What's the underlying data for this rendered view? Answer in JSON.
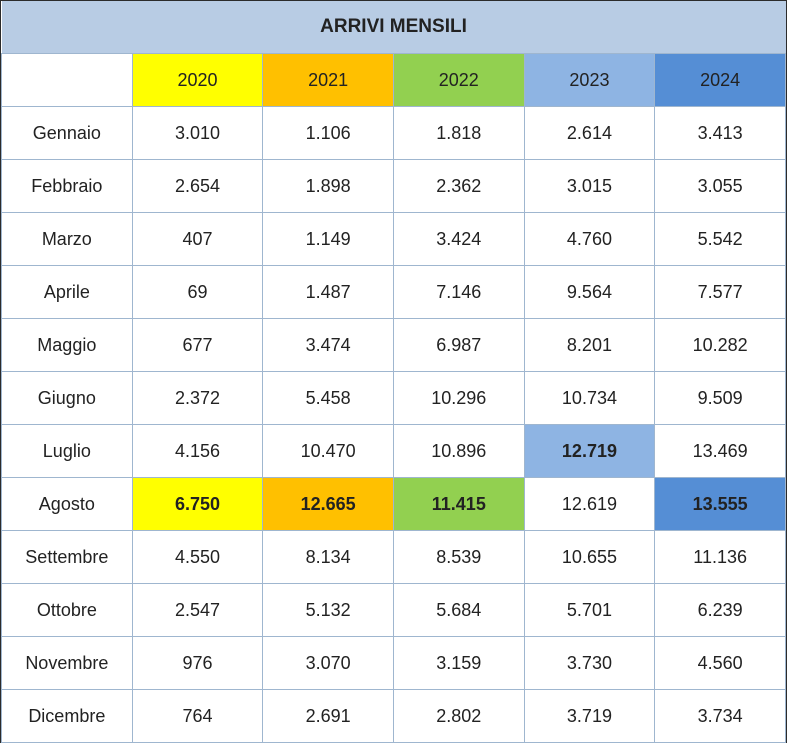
{
  "title": "ARRIVI MENSILI",
  "columns": [
    {
      "label": "2020",
      "color": "#ffff00"
    },
    {
      "label": "2021",
      "color": "#ffc000"
    },
    {
      "label": "2022",
      "color": "#92d050"
    },
    {
      "label": "2023",
      "color": "#8eb4e3"
    },
    {
      "label": "2024",
      "color": "#558ed5"
    }
  ],
  "rows": [
    {
      "month": "Gennaio",
      "values": [
        "3.010",
        "1.106",
        "1.818",
        "2.614",
        "3.413"
      ]
    },
    {
      "month": "Febbraio",
      "values": [
        "2.654",
        "1.898",
        "2.362",
        "3.015",
        "3.055"
      ]
    },
    {
      "month": "Marzo",
      "values": [
        "407",
        "1.149",
        "3.424",
        "4.760",
        "5.542"
      ]
    },
    {
      "month": "Aprile",
      "values": [
        "69",
        "1.487",
        "7.146",
        "9.564",
        "7.577"
      ]
    },
    {
      "month": "Maggio",
      "values": [
        "677",
        "3.474",
        "6.987",
        "8.201",
        "10.282"
      ]
    },
    {
      "month": "Giugno",
      "values": [
        "2.372",
        "5.458",
        "10.296",
        "10.734",
        "9.509"
      ]
    },
    {
      "month": "Luglio",
      "values": [
        "4.156",
        "10.470",
        "10.896",
        "12.719",
        "13.469"
      ],
      "highlight": [
        3
      ]
    },
    {
      "month": "Agosto",
      "values": [
        "6.750",
        "12.665",
        "11.415",
        "12.619",
        "13.555"
      ],
      "highlight": [
        0,
        1,
        2,
        4
      ]
    },
    {
      "month": "Settembre",
      "values": [
        "4.550",
        "8.134",
        "8.539",
        "10.655",
        "11.136"
      ]
    },
    {
      "month": "Ottobre",
      "values": [
        "2.547",
        "5.132",
        "5.684",
        "5.701",
        "6.239"
      ]
    },
    {
      "month": "Novembre",
      "values": [
        "976",
        "3.070",
        "3.159",
        "3.730",
        "4.560"
      ]
    },
    {
      "month": "Dicembre",
      "values": [
        "764",
        "2.691",
        "2.802",
        "3.719",
        "3.734"
      ]
    }
  ]
}
